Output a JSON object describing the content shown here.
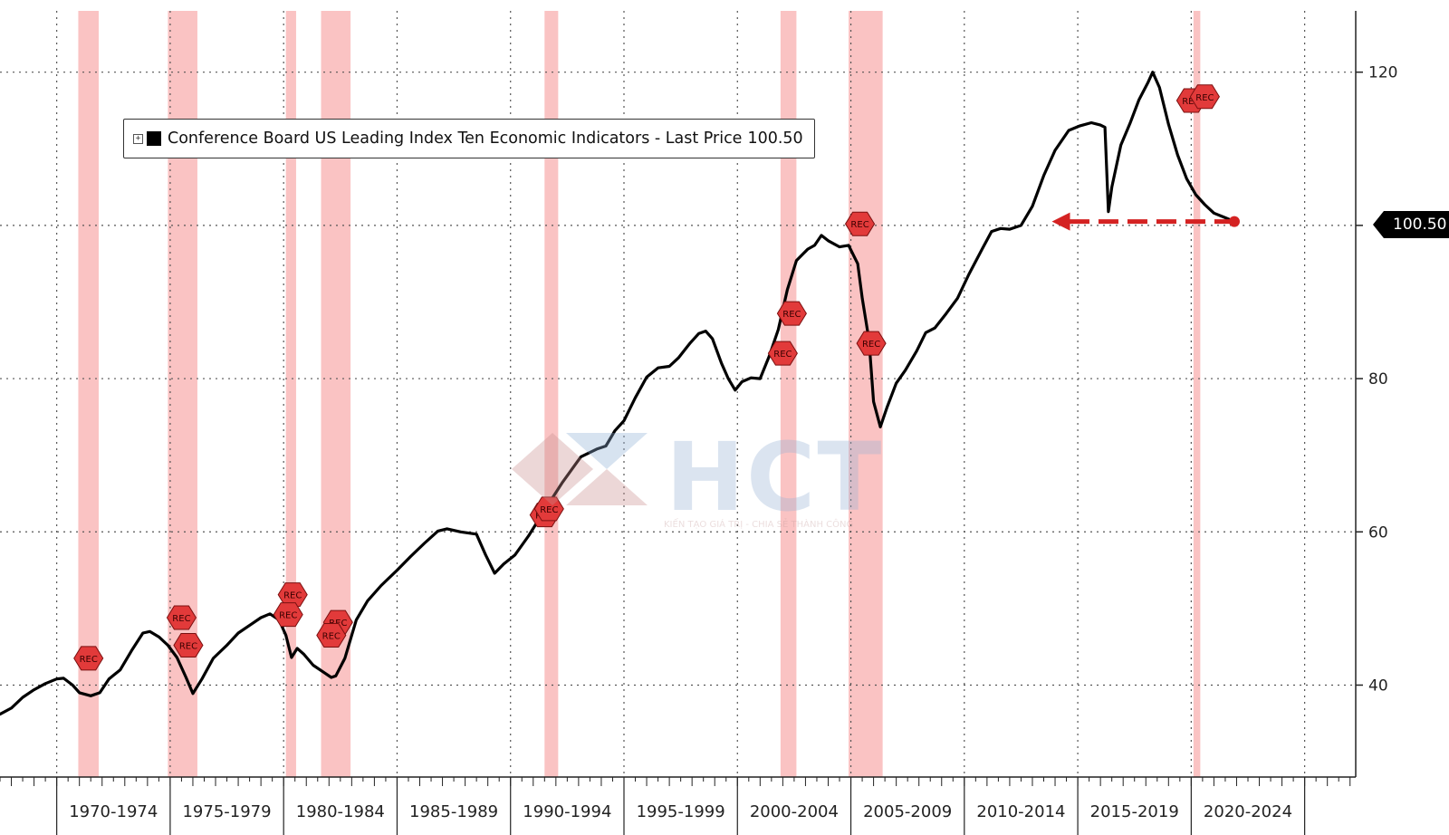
{
  "chart_data": {
    "type": "line",
    "legend": {
      "label": "Conference Board US Leading Index Ten Economic Indicators - Last Price",
      "last_price": "100.50",
      "placement": "top-left"
    },
    "last_price_tag": "100.50",
    "y_axis": {
      "side": "right",
      "ticks": [
        40,
        60,
        80,
        120
      ],
      "gridlines": [
        40,
        60,
        80,
        100,
        120
      ],
      "ylim": [
        28,
        128
      ]
    },
    "x_axis": {
      "xlim": [
        1965.5,
        2025.25
      ],
      "period_labels": [
        "1970-1974",
        "1975-1979",
        "1980-1984",
        "1985-1989",
        "1990-1994",
        "1995-1999",
        "2000-2004",
        "2005-2009",
        "2010-2014",
        "2015-2019",
        "2020-2024"
      ],
      "period_starts": [
        1968,
        1973,
        1978,
        1983,
        1988,
        1993,
        1998,
        2003,
        2008,
        2013,
        2018,
        2023
      ]
    },
    "recessions": [
      [
        1968.95,
        1969.85
      ],
      [
        1972.9,
        1974.2
      ],
      [
        1978.1,
        1978.55
      ],
      [
        1979.65,
        1980.95
      ],
      [
        1989.5,
        1990.1
      ],
      [
        1999.9,
        2000.6
      ],
      [
        2002.9,
        2004.4
      ],
      [
        2018.1,
        2018.4
      ]
    ],
    "rec_markers": [
      {
        "x": 1969.4,
        "y": 43.5,
        "label": "REC"
      },
      {
        "x": 1973.5,
        "y": 48.8,
        "label": "REC"
      },
      {
        "x": 1973.8,
        "y": 45.2,
        "label": "REC"
      },
      {
        "x": 1978.4,
        "y": 51.8,
        "label": "REC"
      },
      {
        "x": 1978.2,
        "y": 49.2,
        "label": "REC"
      },
      {
        "x": 1980.4,
        "y": 48.2,
        "label": "REC"
      },
      {
        "x": 1980.1,
        "y": 46.5,
        "label": "REC"
      },
      {
        "x": 1989.5,
        "y": 62.2,
        "label": "REC"
      },
      {
        "x": 1989.7,
        "y": 63.0,
        "label": "REC"
      },
      {
        "x": 2000.4,
        "y": 88.5,
        "label": "REC"
      },
      {
        "x": 2000.0,
        "y": 83.3,
        "label": "REC"
      },
      {
        "x": 2003.4,
        "y": 100.2,
        "label": "REC"
      },
      {
        "x": 2003.9,
        "y": 84.6,
        "label": "REC"
      },
      {
        "x": 2018.0,
        "y": 116.3,
        "label": "REC"
      },
      {
        "x": 2018.6,
        "y": 116.8,
        "label": "REC"
      }
    ],
    "series": [
      {
        "points": [
          [
            1965.5,
            36.2
          ],
          [
            1966.0,
            37.0
          ],
          [
            1966.5,
            38.4
          ],
          [
            1967.0,
            39.4
          ],
          [
            1967.5,
            40.2
          ],
          [
            1968.0,
            40.8
          ],
          [
            1968.3,
            40.9
          ],
          [
            1968.7,
            40.0
          ],
          [
            1969.0,
            39.0
          ],
          [
            1969.5,
            38.6
          ],
          [
            1969.9,
            39.0
          ],
          [
            1970.3,
            40.8
          ],
          [
            1970.8,
            42.0
          ],
          [
            1971.3,
            44.5
          ],
          [
            1971.8,
            46.8
          ],
          [
            1972.1,
            47.0
          ],
          [
            1972.5,
            46.3
          ],
          [
            1972.9,
            45.2
          ],
          [
            1973.3,
            43.6
          ],
          [
            1973.7,
            41.0
          ],
          [
            1974.0,
            38.9
          ],
          [
            1974.4,
            40.8
          ],
          [
            1974.9,
            43.5
          ],
          [
            1975.5,
            45.2
          ],
          [
            1976.0,
            46.8
          ],
          [
            1976.6,
            48.0
          ],
          [
            1977.0,
            48.8
          ],
          [
            1977.4,
            49.3
          ],
          [
            1977.8,
            48.5
          ],
          [
            1978.1,
            46.5
          ],
          [
            1978.35,
            43.6
          ],
          [
            1978.6,
            44.8
          ],
          [
            1978.9,
            44.0
          ],
          [
            1979.3,
            42.6
          ],
          [
            1979.8,
            41.6
          ],
          [
            1980.1,
            41.0
          ],
          [
            1980.3,
            41.2
          ],
          [
            1980.7,
            43.5
          ],
          [
            1981.2,
            48.5
          ],
          [
            1981.7,
            51.0
          ],
          [
            1982.3,
            53.0
          ],
          [
            1983.0,
            55.0
          ],
          [
            1983.6,
            56.8
          ],
          [
            1984.2,
            58.5
          ],
          [
            1984.8,
            60.1
          ],
          [
            1985.2,
            60.4
          ],
          [
            1985.8,
            60.0
          ],
          [
            1986.5,
            59.7
          ],
          [
            1986.9,
            57.0
          ],
          [
            1987.3,
            54.6
          ],
          [
            1987.7,
            55.8
          ],
          [
            1988.2,
            57.0
          ],
          [
            1988.8,
            59.5
          ],
          [
            1989.6,
            63.3
          ],
          [
            1990.3,
            66.5
          ],
          [
            1991.1,
            69.8
          ],
          [
            1991.8,
            70.8
          ],
          [
            1992.2,
            71.2
          ],
          [
            1992.6,
            73.2
          ],
          [
            1993.0,
            74.5
          ],
          [
            1993.5,
            77.5
          ],
          [
            1994.0,
            80.2
          ],
          [
            1994.5,
            81.4
          ],
          [
            1995.0,
            81.6
          ],
          [
            1995.4,
            82.7
          ],
          [
            1995.9,
            84.6
          ],
          [
            1996.3,
            85.9
          ],
          [
            1996.6,
            86.2
          ],
          [
            1996.9,
            85.2
          ],
          [
            1997.3,
            82.0
          ],
          [
            1997.6,
            80.0
          ],
          [
            1997.9,
            78.5
          ],
          [
            1998.2,
            79.6
          ],
          [
            1998.6,
            80.1
          ],
          [
            1999.0,
            80.0
          ],
          [
            1999.4,
            82.9
          ],
          [
            1999.8,
            86.4
          ],
          [
            2000.2,
            91.6
          ],
          [
            2000.6,
            95.4
          ],
          [
            2001.1,
            96.9
          ],
          [
            2001.4,
            97.4
          ],
          [
            2001.7,
            98.7
          ],
          [
            2002.0,
            98.0
          ],
          [
            2002.5,
            97.2
          ],
          [
            2002.9,
            97.4
          ],
          [
            2003.3,
            95.0
          ],
          [
            2003.5,
            90.5
          ],
          [
            2003.8,
            85.0
          ],
          [
            2004.0,
            77.0
          ],
          [
            2004.3,
            73.7
          ],
          [
            2004.6,
            76.3
          ],
          [
            2005.0,
            79.4
          ],
          [
            2005.4,
            81.1
          ],
          [
            2005.9,
            83.6
          ],
          [
            2006.3,
            86.0
          ],
          [
            2006.7,
            86.6
          ],
          [
            2007.2,
            88.5
          ],
          [
            2007.7,
            90.5
          ],
          [
            2008.2,
            93.6
          ],
          [
            2008.8,
            97.0
          ],
          [
            2009.2,
            99.2
          ],
          [
            2009.6,
            99.6
          ],
          [
            2010.0,
            99.5
          ],
          [
            2010.5,
            100.0
          ],
          [
            2011.0,
            102.5
          ],
          [
            2011.5,
            106.5
          ],
          [
            2012.0,
            109.8
          ],
          [
            2012.6,
            112.4
          ],
          [
            2013.1,
            113.0
          ],
          [
            2013.6,
            113.4
          ],
          [
            2014.0,
            113.1
          ],
          [
            2014.2,
            112.8
          ],
          [
            2014.35,
            101.8
          ],
          [
            2014.5,
            105.0
          ],
          [
            2014.9,
            110.5
          ],
          [
            2015.3,
            113.3
          ],
          [
            2015.7,
            116.4
          ],
          [
            2016.1,
            118.7
          ],
          [
            2016.3,
            120.0
          ],
          [
            2016.6,
            118.0
          ],
          [
            2017.0,
            113.2
          ],
          [
            2017.4,
            109.2
          ],
          [
            2017.8,
            106.1
          ],
          [
            2018.2,
            104.0
          ],
          [
            2018.6,
            102.7
          ],
          [
            2019.0,
            101.6
          ],
          [
            2019.5,
            101.0
          ],
          [
            2019.9,
            100.5
          ]
        ]
      }
    ],
    "last_point": [
      2019.9,
      100.5
    ],
    "arrow_to_x": 2011.7
  }
}
